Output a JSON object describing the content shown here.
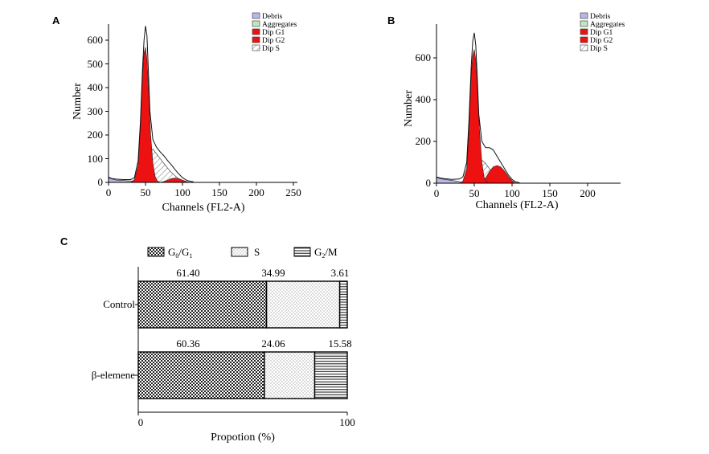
{
  "colors": {
    "debris": "#b8b8e6",
    "aggregates": "#bfe8bf",
    "g1": "#ee1111",
    "g2": "#ee1111",
    "s_hatch": "#555555"
  },
  "panelA": {
    "label": "A",
    "xlabel": "Channels (FL2-A)",
    "ylabel": "Number",
    "xticks": [
      "0",
      "50",
      "100",
      "150",
      "200",
      "250"
    ],
    "yticks": [
      "0",
      "100",
      "200",
      "300",
      "400",
      "500",
      "600"
    ],
    "legend": [
      "Debris",
      "Aggregates",
      "Dip G1",
      "Dip G2",
      "Dip S"
    ]
  },
  "panelB": {
    "label": "B",
    "xlabel": "Channels (FL2-A)",
    "ylabel": "Number",
    "xticks": [
      "0",
      "50",
      "100",
      "150",
      "200"
    ],
    "yticks": [
      "0",
      "200",
      "400",
      "600"
    ],
    "legend": [
      "Debris",
      "Aggregates",
      "Dip G1",
      "Dip G2",
      "Dip S"
    ]
  },
  "panelC": {
    "label": "C",
    "legend": {
      "g0g1_main": "G",
      "g0g1_sub1": "0",
      "g0g1_sep": "/G",
      "g0g1_sub2": "1",
      "s": "S",
      "g2m_main": "G",
      "g2m_sub": "2",
      "g2m_rest": "/M"
    },
    "xlabel": "Propotion (%)",
    "xticks": [
      "0",
      "100"
    ]
  },
  "chart_data": [
    {
      "type": "area",
      "panel": "A",
      "xlabel": "Channels (FL2-A)",
      "ylabel": "Number",
      "xlim": [
        0,
        250
      ],
      "ylim": [
        0,
        650
      ],
      "legend": "top-right",
      "series": [
        {
          "name": "Debris",
          "x": [
            0,
            5,
            10,
            20,
            30,
            35,
            40
          ],
          "y": [
            20,
            14,
            10,
            8,
            6,
            5,
            3
          ]
        },
        {
          "name": "Dip G1",
          "x": [
            30,
            35,
            40,
            43,
            46,
            48,
            50,
            52,
            54,
            57,
            60,
            63,
            66,
            70
          ],
          "y": [
            0,
            12,
            70,
            230,
            450,
            545,
            570,
            520,
            400,
            200,
            80,
            25,
            6,
            0
          ]
        },
        {
          "name": "Dip G2",
          "x": [
            70,
            75,
            80,
            85,
            90,
            95,
            100,
            105,
            110
          ],
          "y": [
            0,
            4,
            10,
            16,
            18,
            16,
            10,
            4,
            0
          ]
        },
        {
          "name": "Dip S",
          "x": [
            38,
            42,
            46,
            50,
            55,
            60,
            65,
            70,
            75,
            80,
            85,
            90,
            95,
            100,
            105,
            110
          ],
          "y": [
            0,
            8,
            30,
            90,
            130,
            140,
            120,
            100,
            80,
            60,
            42,
            28,
            15,
            6,
            2,
            0
          ]
        },
        {
          "x": [
            0,
            5,
            10,
            20,
            30,
            35,
            40,
            43,
            46,
            48,
            50,
            52,
            54,
            56,
            60,
            65,
            70,
            75,
            80,
            85,
            90,
            95,
            100,
            105,
            110,
            115
          ],
          "y": [
            22,
            16,
            14,
            12,
            12,
            20,
            90,
            250,
            480,
            600,
            660,
            620,
            460,
            300,
            180,
            148,
            128,
            112,
            92,
            74,
            54,
            36,
            20,
            10,
            5,
            2
          ]
        }
      ]
    },
    {
      "type": "area",
      "panel": "B",
      "xlabel": "Channels (FL2-A)",
      "ylabel": "Number",
      "xlim": [
        0,
        240
      ],
      "ylim": [
        0,
        780
      ],
      "legend": "top-right",
      "series": [
        {
          "name": "Debris",
          "x": [
            0,
            5,
            10,
            20,
            30,
            35
          ],
          "y": [
            28,
            22,
            18,
            14,
            8,
            0
          ]
        },
        {
          "name": "Dip G1",
          "x": [
            30,
            35,
            40,
            43,
            46,
            48,
            50,
            52,
            54,
            57,
            60,
            63,
            66,
            70
          ],
          "y": [
            0,
            10,
            70,
            250,
            520,
            610,
            640,
            590,
            460,
            250,
            100,
            30,
            6,
            0
          ]
        },
        {
          "name": "Dip G2",
          "x": [
            60,
            65,
            70,
            75,
            80,
            85,
            90,
            95,
            100,
            105
          ],
          "y": [
            0,
            25,
            55,
            78,
            85,
            78,
            58,
            32,
            12,
            0
          ]
        },
        {
          "name": "Dip S",
          "x": [
            40,
            45,
            50,
            55,
            60,
            65,
            70,
            75,
            80,
            85,
            90,
            95,
            100
          ],
          "y": [
            0,
            25,
            70,
            100,
            110,
            95,
            70,
            50,
            32,
            18,
            8,
            3,
            0
          ]
        },
        {
          "x": [
            0,
            5,
            10,
            20,
            30,
            35,
            40,
            43,
            46,
            48,
            50,
            52,
            54,
            56,
            60,
            65,
            70,
            75,
            80,
            85,
            90,
            95,
            100,
            105,
            110
          ],
          "y": [
            30,
            25,
            22,
            18,
            20,
            30,
            100,
            300,
            560,
            680,
            720,
            660,
            500,
            330,
            200,
            170,
            170,
            160,
            130,
            100,
            70,
            40,
            18,
            6,
            2
          ]
        }
      ]
    },
    {
      "type": "bar",
      "panel": "C",
      "orientation": "horizontal",
      "stacked": true,
      "categories": [
        "Control",
        "β-elemene"
      ],
      "series": [
        {
          "name": "G0/G1",
          "values": [
            61.4,
            60.36
          ]
        },
        {
          "name": "S",
          "values": [
            34.99,
            24.06
          ]
        },
        {
          "name": "G2/M",
          "values": [
            3.61,
            15.58
          ]
        }
      ],
      "labels": [
        [
          "61.40",
          "34.99",
          "3.61"
        ],
        [
          "60.36",
          "24.06",
          "15.58"
        ]
      ],
      "xlabel": "Propotion (%)",
      "xlim": [
        0,
        100
      ],
      "legend": "top"
    }
  ]
}
